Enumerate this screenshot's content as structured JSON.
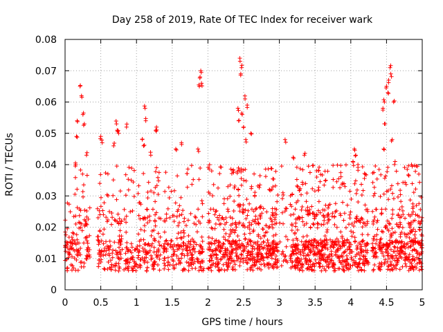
{
  "chart_data": {
    "type": "scatter",
    "title": "Day 258 of 2019, Rate Of TEC Index for receiver wark",
    "xlabel": "GPS time / hours",
    "ylabel": "ROTI / TECUs",
    "xlim": [
      0,
      5
    ],
    "ylim": [
      0,
      0.08
    ],
    "x_ticks": [
      "0",
      "0.5",
      "1",
      "1.5",
      "2",
      "2.5",
      "3",
      "3.5",
      "4",
      "4.5",
      "5"
    ],
    "y_ticks": [
      "0",
      "0.01",
      "0.02",
      "0.03",
      "0.04",
      "0.05",
      "0.06",
      "0.07",
      "0.08"
    ],
    "grid": true,
    "marker": "+",
    "color": "#ff0000",
    "clusters": [
      {
        "x_start": 0.0,
        "x_end": 0.35,
        "density": 2,
        "highs": [
          [
            0.21,
            0.065
          ],
          [
            0.23,
            0.062
          ],
          [
            0.25,
            0.056
          ],
          [
            0.17,
            0.054
          ],
          [
            0.27,
            0.053
          ],
          [
            0.16,
            0.049
          ],
          [
            0.3,
            0.043
          ],
          [
            0.15,
            0.04
          ]
        ]
      },
      {
        "x_start": 0.45,
        "x_end": 0.8,
        "density": 2,
        "highs": [
          [
            0.5,
            0.049
          ],
          [
            0.52,
            0.047
          ],
          [
            0.72,
            0.053
          ],
          [
            0.73,
            0.051
          ],
          [
            0.75,
            0.05
          ],
          [
            0.86,
            0.052
          ],
          [
            0.68,
            0.046
          ]
        ]
      },
      {
        "x_start": 0.82,
        "x_end": 1.35,
        "density": 2,
        "highs": [
          [
            1.12,
            0.058
          ],
          [
            1.13,
            0.054
          ],
          [
            1.08,
            0.048
          ],
          [
            1.1,
            0.046
          ],
          [
            1.28,
            0.052
          ],
          [
            1.27,
            0.051
          ],
          [
            1.2,
            0.043
          ]
        ]
      },
      {
        "x_start": 1.38,
        "x_end": 1.95,
        "density": 2,
        "highs": [
          [
            1.9,
            0.07
          ],
          [
            1.89,
            0.068
          ],
          [
            1.91,
            0.066
          ],
          [
            1.88,
            0.065
          ],
          [
            1.86,
            0.045
          ],
          [
            1.63,
            0.047
          ],
          [
            1.55,
            0.045
          ]
        ]
      },
      {
        "x_start": 2.0,
        "x_end": 2.98,
        "density": 3,
        "highs": [
          [
            2.45,
            0.073
          ],
          [
            2.47,
            0.071
          ],
          [
            2.46,
            0.069
          ],
          [
            2.52,
            0.061
          ],
          [
            2.55,
            0.059
          ],
          [
            2.42,
            0.058
          ],
          [
            2.48,
            0.056
          ],
          [
            2.43,
            0.054
          ],
          [
            2.5,
            0.052
          ],
          [
            2.6,
            0.05
          ],
          [
            2.53,
            0.048
          ],
          [
            2.35,
            0.038
          ]
        ]
      },
      {
        "x_start": 3.0,
        "x_end": 3.12,
        "density": 1,
        "highs": [
          [
            3.08,
            0.048
          ],
          [
            3.05,
            0.031
          ]
        ]
      },
      {
        "x_start": 3.15,
        "x_end": 4.25,
        "density": 3,
        "highs": [
          [
            3.2,
            0.042
          ],
          [
            3.35,
            0.043
          ],
          [
            3.55,
            0.038
          ],
          [
            3.65,
            0.035
          ],
          [
            4.05,
            0.045
          ],
          [
            4.07,
            0.043
          ],
          [
            4.03,
            0.041
          ],
          [
            4.1,
            0.04
          ]
        ]
      },
      {
        "x_start": 4.3,
        "x_end": 5.0,
        "density": 3,
        "highs": [
          [
            4.55,
            0.071
          ],
          [
            4.56,
            0.069
          ],
          [
            4.53,
            0.067
          ],
          [
            4.5,
            0.065
          ],
          [
            4.52,
            0.063
          ],
          [
            4.47,
            0.06
          ],
          [
            4.6,
            0.06
          ],
          [
            4.45,
            0.058
          ],
          [
            4.48,
            0.053
          ],
          [
            4.58,
            0.048
          ],
          [
            4.46,
            0.045
          ],
          [
            4.62,
            0.041
          ],
          [
            4.85,
            0.04
          ]
        ]
      }
    ]
  }
}
